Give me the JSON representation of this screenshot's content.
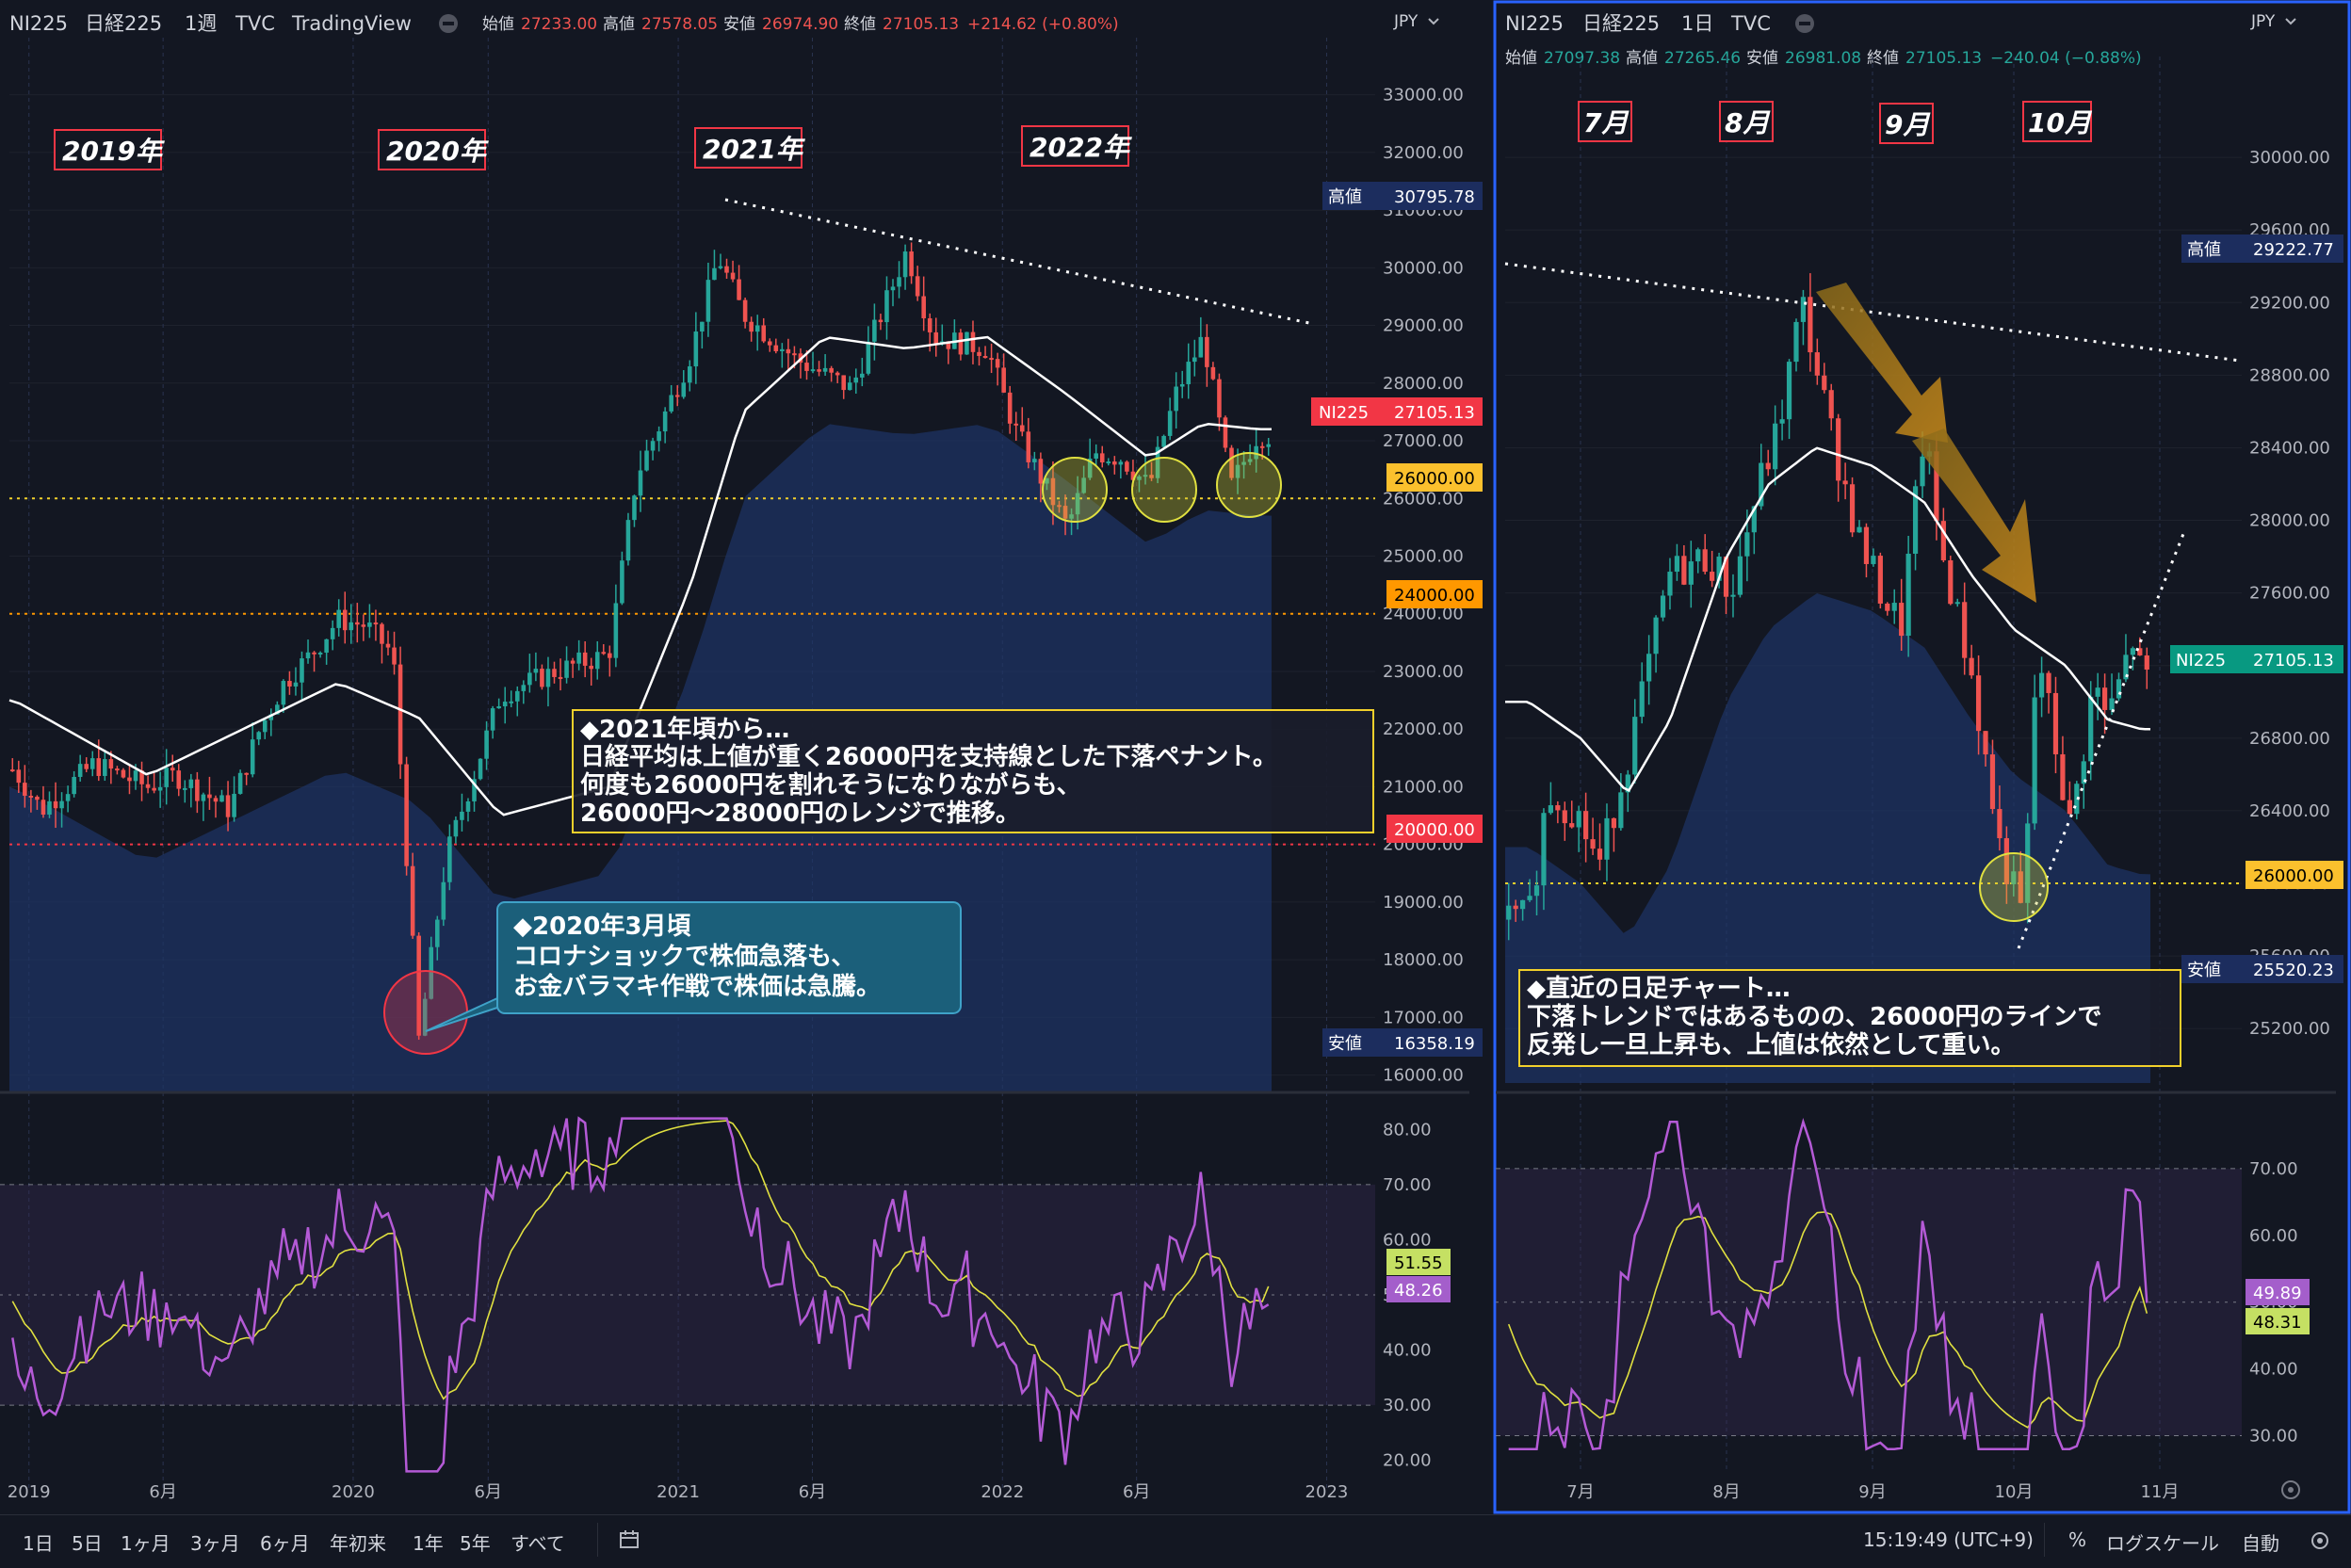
{
  "colors": {
    "bg": "#131722",
    "grid": "#1e222d",
    "up": "#26a69a",
    "down": "#ef5350",
    "ma": "#ffffff",
    "cloud": "#1e3566",
    "rsi": "#b45ad6",
    "rsi_ma": "#e0e040",
    "accent_border": "#2962ff",
    "label_red": "#f23645",
    "label_orange": "#ff9800",
    "label_yellow": "#fbc02d",
    "label_navy": "#1c2d5e",
    "label_teal": "#089981",
    "label_green_bg": "#c5e063",
    "label_purple": "#a45ecb"
  },
  "left_panel": {
    "header": {
      "symbol": "NI225",
      "name": "日経225",
      "interval": "1週",
      "source": "TVC",
      "provider": "TradingView",
      "open_label": "始値",
      "open": "27233.00",
      "high_label": "高値",
      "high": "27578.05",
      "low_label": "安値",
      "low": "26974.90",
      "close_label": "終値",
      "close": "27105.13",
      "change": "+214.62 (+0.80%)"
    },
    "currency": "JPY",
    "year_tags": [
      "2019年",
      "2020年",
      "2021年",
      "2022年"
    ],
    "price_labels": {
      "high_tag": "高値",
      "high_value": "30795.78",
      "last_tag": "NI225",
      "last_value": "27105.13",
      "line26000": "26000.00",
      "line24000": "24000.00",
      "line20000": "20000.00",
      "low_tag": "安値",
      "low_value": "16358.19"
    },
    "note_main": {
      "lines": [
        "◆2021年頃から…",
        "日経平均は上値が重く26000円を支持線とした下落ペナント。",
        "何度も26000円を割れそうになりながらも、",
        "26000円〜28000円のレンジで推移。"
      ]
    },
    "note_covid": {
      "lines": [
        "◆2020年3月頃",
        "コロナショックで株価急落も、",
        "お金バラマキ作戦で株価は急騰。"
      ]
    },
    "rsi_labels": {
      "ma_value": "51.55",
      "rsi_value": "48.26"
    }
  },
  "right_panel": {
    "header": {
      "symbol": "NI225",
      "name": "日経225",
      "interval": "1日",
      "source": "TVC",
      "open_label": "始値",
      "open": "27097.38",
      "high_label": "高値",
      "high": "27265.46",
      "low_label": "安値",
      "low": "26981.08",
      "close_label": "終値",
      "close": "27105.13",
      "change": "−240.04 (−0.88%)"
    },
    "currency": "JPY",
    "month_tags": [
      "7月",
      "8月",
      "9月",
      "10月"
    ],
    "price_labels": {
      "high_tag": "高値",
      "high_value": "29222.77",
      "last_tag": "NI225",
      "last_value": "27105.13",
      "line26000": "26000.00",
      "low_tag": "安値",
      "low_value": "25520.23"
    },
    "note": {
      "lines": [
        "◆直近の日足チャート…",
        "下落トレンドではあるものの、26000円のラインで",
        "反発し一旦上昇も、上値は依然として重い。"
      ]
    },
    "rsi_labels": {
      "rsi_value": "49.89",
      "ma_value": "48.31"
    }
  },
  "bottom_bar": {
    "timeframes": [
      "1日",
      "5日",
      "1ヶ月",
      "3ヶ月",
      "6ヶ月",
      "年初来",
      "1年",
      "5年",
      "すべて"
    ],
    "clock": "15:19:49 (UTC+9)",
    "percent": "%",
    "log_scale": "ログスケール",
    "auto": "自動"
  },
  "chart_data": [
    {
      "type": "candlestick",
      "title": "NI225 日経225 1週",
      "ylabel": "JPY",
      "ylim": [
        15700,
        33500
      ],
      "y_ticks": [
        16000,
        17000,
        18000,
        19000,
        20000,
        21000,
        22000,
        23000,
        24000,
        25000,
        26000,
        27000,
        28000,
        29000,
        30000,
        31000,
        32000,
        33000
      ],
      "x_ticks": [
        "2019",
        "6月",
        "2020",
        "6月",
        "2021",
        "6月",
        "2022",
        "6月",
        "2023"
      ],
      "horizontal_lines": [
        26000,
        24000,
        20000
      ],
      "price_path": [
        [
          "2018-12",
          21300
        ],
        [
          "2019-01",
          20600
        ],
        [
          "2019-03",
          21400
        ],
        [
          "2019-05",
          21000
        ],
        [
          "2019-06",
          21200
        ],
        [
          "2019-08",
          20600
        ],
        [
          "2019-09",
          21900
        ],
        [
          "2019-10",
          22800
        ],
        [
          "2019-11",
          23300
        ],
        [
          "2019-12",
          23900
        ],
        [
          "2020-01",
          23800
        ],
        [
          "2020-02",
          23300
        ],
        [
          "2020-03",
          16600
        ],
        [
          "2020-04",
          19800
        ],
        [
          "2020-06",
          22600
        ],
        [
          "2020-08",
          23000
        ],
        [
          "2020-10",
          23300
        ],
        [
          "2020-11",
          26400
        ],
        [
          "2020-12",
          27400
        ],
        [
          "2021-01",
          28500
        ],
        [
          "2021-02",
          30200
        ],
        [
          "2021-03",
          29200
        ],
        [
          "2021-05",
          28400
        ],
        [
          "2021-07",
          27900
        ],
        [
          "2021-09",
          30300
        ],
        [
          "2021-10",
          28800
        ],
        [
          "2021-12",
          28600
        ],
        [
          "2022-01",
          27200
        ],
        [
          "2022-03",
          25500
        ],
        [
          "2022-04",
          26800
        ],
        [
          "2022-05",
          26700
        ],
        [
          "2022-06",
          26200
        ],
        [
          "2022-07",
          27800
        ],
        [
          "2022-08",
          28800
        ],
        [
          "2022-09",
          26200
        ],
        [
          "2022-10",
          27100
        ]
      ],
      "ma_path": [
        [
          "2018-12",
          22500
        ],
        [
          "2019-05",
          21200
        ],
        [
          "2019-12",
          22800
        ],
        [
          "2020-03",
          22200
        ],
        [
          "2020-06",
          20500
        ],
        [
          "2020-10",
          21000
        ],
        [
          "2021-01",
          24500
        ],
        [
          "2021-03",
          27500
        ],
        [
          "2021-06",
          28800
        ],
        [
          "2021-09",
          28600
        ],
        [
          "2021-12",
          28800
        ],
        [
          "2022-03",
          27800
        ],
        [
          "2022-06",
          26700
        ],
        [
          "2022-08",
          27300
        ],
        [
          "2022-10",
          27200
        ]
      ],
      "rsi": {
        "ylim": [
          15,
          85
        ],
        "y_ticks": [
          20,
          30,
          40,
          50,
          60,
          70,
          80
        ],
        "levels": [
          70,
          30
        ],
        "last_rsi": 48.26,
        "last_ma": 51.55
      }
    },
    {
      "type": "candlestick",
      "title": "NI225 日経225 1日",
      "ylabel": "JPY",
      "ylim": [
        24900,
        30400
      ],
      "y_ticks": [
        25200,
        25600,
        26000,
        26400,
        26800,
        27200,
        27600,
        28000,
        28400,
        28800,
        29200,
        29600,
        30000
      ],
      "x_ticks": [
        "7月",
        "8月",
        "9月",
        "10月",
        "11月"
      ],
      "horizontal_lines": [
        26000
      ],
      "price_path": [
        [
          "2022-06-20",
          25800
        ],
        [
          "2022-06-24",
          26500
        ],
        [
          "2022-06-30",
          26400
        ],
        [
          "2022-07-05",
          26100
        ],
        [
          "2022-07-12",
          26800
        ],
        [
          "2022-07-20",
          27700
        ],
        [
          "2022-07-28",
          27800
        ],
        [
          "2022-08-02",
          27600
        ],
        [
          "2022-08-08",
          28200
        ],
        [
          "2022-08-12",
          28500
        ],
        [
          "2022-08-17",
          29200
        ],
        [
          "2022-08-23",
          28500
        ],
        [
          "2022-08-29",
          27900
        ],
        [
          "2022-09-02",
          27650
        ],
        [
          "2022-09-07",
          27400
        ],
        [
          "2022-09-12",
          28500
        ],
        [
          "2022-09-15",
          27900
        ],
        [
          "2022-09-22",
          27150
        ],
        [
          "2022-09-28",
          26200
        ],
        [
          "2022-10-03",
          25800
        ],
        [
          "2022-10-06",
          27300
        ],
        [
          "2022-10-13",
          26300
        ],
        [
          "2022-10-18",
          27100
        ],
        [
          "2022-10-21",
          26900
        ],
        [
          "2022-10-27",
          27400
        ],
        [
          "2022-10-28",
          27105
        ]
      ],
      "ma_path": [
        [
          "2022-06-20",
          27000
        ],
        [
          "2022-07-01",
          26800
        ],
        [
          "2022-07-11",
          26500
        ],
        [
          "2022-07-20",
          26900
        ],
        [
          "2022-08-01",
          27800
        ],
        [
          "2022-08-10",
          28200
        ],
        [
          "2022-08-20",
          28400
        ],
        [
          "2022-09-01",
          28300
        ],
        [
          "2022-09-12",
          28100
        ],
        [
          "2022-09-22",
          27700
        ],
        [
          "2022-10-01",
          27400
        ],
        [
          "2022-10-12",
          27200
        ],
        [
          "2022-10-21",
          26900
        ],
        [
          "2022-10-28",
          26850
        ]
      ],
      "rsi": {
        "ylim": [
          25,
          80
        ],
        "y_ticks": [
          30,
          40,
          50,
          60,
          70
        ],
        "levels": [
          70,
          30
        ],
        "last_rsi": 49.89,
        "last_ma": 48.31
      }
    }
  ]
}
